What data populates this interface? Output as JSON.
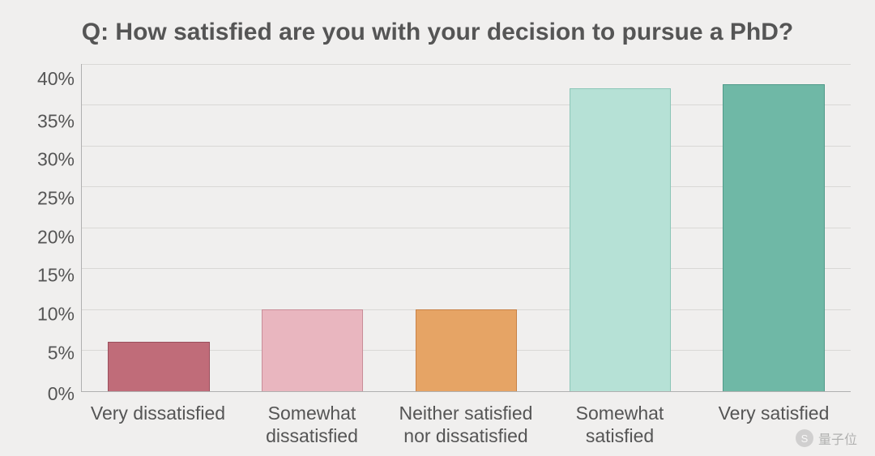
{
  "chart": {
    "type": "bar",
    "title": "Q: How satisfied are you with your decision to pursue a PhD?",
    "title_fontsize": 30,
    "title_color": "#555555",
    "background_color": "#f0efee",
    "grid_color": "#d9d8d6",
    "axis_color": "#b0b0b0",
    "label_color": "#555555",
    "label_fontsize": 23,
    "ylim": [
      0,
      40
    ],
    "ytick_step": 5,
    "y_ticks": [
      "40%",
      "35%",
      "30%",
      "25%",
      "20%",
      "15%",
      "10%",
      "5%",
      "0%"
    ],
    "bar_width": 0.66,
    "categories": [
      "Very dissatisfied",
      "Somewhat dissatisfied",
      "Neither satisfied nor dissatisfied",
      "Somewhat satisfied",
      "Very satisfied"
    ],
    "values": [
      6,
      10,
      10,
      37,
      37.5
    ],
    "bar_fill_colors": [
      "#c06c79",
      "#e9b6bf",
      "#e6a465",
      "#b6e1d6",
      "#6fb8a6"
    ],
    "bar_border_colors": [
      "#9a4f5c",
      "#c98d98",
      "#c88146",
      "#8cc6b8",
      "#4f9a89"
    ]
  },
  "watermark": {
    "icon_label": "S",
    "text": "量子位"
  }
}
